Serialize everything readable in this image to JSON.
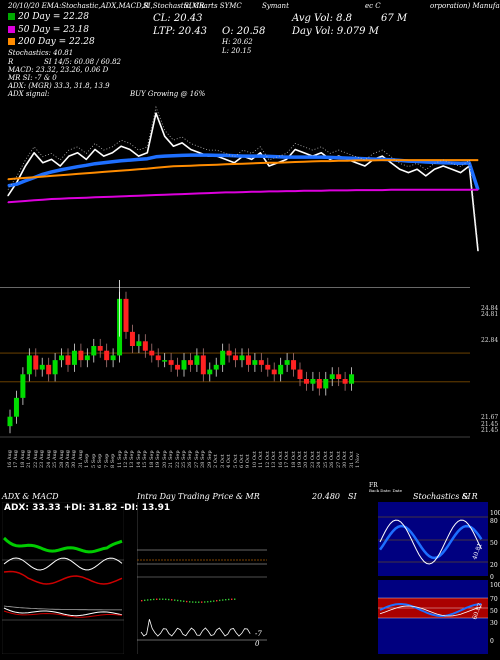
{
  "header": {
    "top_line_left": "20/10/20 EMA:Stochastic,ADX,MACD,R",
    "top_line_mid": "SI,Stochastic,MR",
    "top_line_mid2": "SI Charts SYMC",
    "top_line_right1": "Symant",
    "top_line_right2": "ec C",
    "top_line_right3": "orporation) Manufac",
    "ema20": "20  Day = 22.28",
    "ema50": "50  Day = 23.18",
    "ema200": "200  Day = 22.28",
    "stochastics": "Stochastics: 40.81",
    "r_label": "R",
    "si": "SI 14/5: 60.08 / 60.82",
    "macd": "MACD: 23.32, 23.26, 0.06  D",
    "mr": "MR          SI: -7 & 0",
    "adx": "ADX:                    (MGR) 33.3, 31.8, 13.9",
    "adx_signal_label": "ADX  signal:",
    "adx_signal": "BUY Growing @ 16%",
    "cl": "CL: 20.43",
    "ltp": "LTP: 20.43",
    "open": "O: 20.58",
    "high": "H: 20.62",
    "low": "L: 20.15",
    "avg_vol": "Avg Vol: 8.8",
    "avg_vol_unit": "67 M",
    "day_vol": "Day Vol: 9.079 M",
    "swatch_colors": [
      "#00aa00",
      "#dd00dd",
      "#ff8c00"
    ]
  },
  "chart_data": [
    {
      "type": "line",
      "name": "price-and-emas",
      "x": [
        "16 Aug",
        "17 Aug",
        "18 Aug",
        "21 Aug",
        "22 Aug",
        "23 Aug",
        "24 Aug",
        "25 Aug",
        "28 Aug",
        "29 Aug",
        "30 Aug",
        "31 Aug",
        "1 Sep",
        "5 Sep",
        "6 Sep",
        "7 Sep",
        "8 Sep",
        "11 Sep",
        "12 Sep",
        "13 Sep",
        "14 Sep",
        "15 Sep",
        "18 Sep",
        "19 Sep",
        "20 Sep",
        "21 Sep",
        "22 Sep",
        "25 Sep",
        "26 Sep",
        "27 Sep",
        "28 Sep",
        "29 Sep",
        "2 Oct",
        "3 Oct",
        "4 Oct",
        "5 Oct",
        "6 Oct",
        "9 Oct",
        "10 Oct",
        "11 Oct",
        "12 Oct",
        "13 Oct",
        "16 Oct",
        "17 Oct",
        "18 Oct",
        "19 Oct",
        "20 Oct",
        "23 Oct",
        "24 Oct",
        "25 Oct",
        "26 Oct",
        "27 Oct",
        "30 Oct",
        "31 Oct",
        "1 Nov"
      ],
      "series": [
        {
          "name": "close",
          "color": "#ffffff",
          "values": [
            22.1,
            22.5,
            23.0,
            23.4,
            23.1,
            23.2,
            23.0,
            23.3,
            23.4,
            23.2,
            23.5,
            23.3,
            23.4,
            23.6,
            23.5,
            23.3,
            23.4,
            24.6,
            23.9,
            23.6,
            23.7,
            23.5,
            23.4,
            23.3,
            23.3,
            23.2,
            23.1,
            23.3,
            23.2,
            23.4,
            23.0,
            23.1,
            23.2,
            23.5,
            23.4,
            23.3,
            23.4,
            23.2,
            23.3,
            23.2,
            23.1,
            23.0,
            23.2,
            23.3,
            23.1,
            22.9,
            22.8,
            22.9,
            22.7,
            22.9,
            23.0,
            22.9,
            22.8,
            23.0,
            20.43
          ]
        },
        {
          "name": "ema20",
          "color": "#1e6fff",
          "values": [
            22.4,
            22.45,
            22.55,
            22.65,
            22.75,
            22.82,
            22.88,
            22.93,
            22.98,
            23.02,
            23.07,
            23.1,
            23.13,
            23.16,
            23.18,
            23.2,
            23.22,
            23.28,
            23.3,
            23.31,
            23.32,
            23.33,
            23.33,
            23.33,
            23.32,
            23.32,
            23.31,
            23.3,
            23.3,
            23.3,
            23.29,
            23.28,
            23.27,
            23.27,
            23.27,
            23.27,
            23.27,
            23.26,
            23.25,
            23.24,
            23.23,
            23.22,
            23.21,
            23.2,
            23.19,
            23.17,
            23.15,
            23.14,
            23.12,
            23.11,
            23.1,
            23.09,
            23.08,
            23.09,
            22.28
          ]
        },
        {
          "name": "ema50",
          "color": "#ff8c00",
          "values": [
            22.6,
            22.62,
            22.64,
            22.66,
            22.68,
            22.7,
            22.72,
            22.74,
            22.76,
            22.78,
            22.8,
            22.82,
            22.84,
            22.86,
            22.88,
            22.9,
            22.92,
            22.95,
            22.97,
            22.99,
            23.0,
            23.01,
            23.02,
            23.03,
            23.04,
            23.05,
            23.06,
            23.07,
            23.08,
            23.09,
            23.1,
            23.1,
            23.11,
            23.12,
            23.13,
            23.14,
            23.15,
            23.15,
            23.16,
            23.16,
            23.17,
            23.17,
            23.17,
            23.18,
            23.18,
            23.18,
            23.18,
            23.18,
            23.18,
            23.18,
            23.18,
            23.18,
            23.18,
            23.18,
            23.18
          ]
        },
        {
          "name": "ema200",
          "color": "#dd00dd",
          "values": [
            21.9,
            21.92,
            21.94,
            21.96,
            21.98,
            22.0,
            22.01,
            22.02,
            22.03,
            22.04,
            22.05,
            22.06,
            22.07,
            22.08,
            22.09,
            22.1,
            22.11,
            22.12,
            22.13,
            22.14,
            22.15,
            22.16,
            22.17,
            22.18,
            22.19,
            22.2,
            22.2,
            22.21,
            22.22,
            22.22,
            22.23,
            22.23,
            22.24,
            22.24,
            22.25,
            22.25,
            22.25,
            22.26,
            22.26,
            22.26,
            22.27,
            22.27,
            22.27,
            22.27,
            22.28,
            22.28,
            22.28,
            22.28,
            22.28,
            22.28,
            22.28,
            22.28,
            22.28,
            22.28,
            22.28
          ]
        }
      ]
    },
    {
      "type": "candlestick",
      "name": "daily-candles",
      "ylim": [
        21.5,
        25.0
      ],
      "price_labels": [
        "24.84",
        "24.81",
        "22.84",
        "21.67",
        "21.45",
        "21.45"
      ],
      "x_labels": [
        "16 Aug",
        "17 Aug",
        "18 Aug",
        "21 Aug",
        "22 Aug",
        "23 Aug",
        "24 Aug",
        "25 Aug",
        "28 Aug",
        "29 Aug",
        "30 Aug",
        "31 Aug",
        "1 Sep",
        "5 Sep",
        "6 Sep",
        "7 Sep",
        "8 Sep",
        "11 Sep",
        "12 Sep",
        "13 Sep",
        "14 Sep",
        "15 Sep",
        "18 Sep",
        "19 Sep",
        "20 Sep",
        "21 Sep",
        "22 Sep",
        "25 Sep",
        "26 Sep",
        "27 Sep",
        "28 Sep",
        "29 Sep",
        "2 Oct",
        "3 Oct",
        "4 Oct",
        "5 Oct",
        "6 Oct",
        "9 Oct",
        "10 Oct",
        "11 Oct",
        "12 Oct",
        "13 Oct",
        "16 Oct",
        "17 Oct",
        "18 Oct",
        "19 Oct",
        "20 Oct",
        "23 Oct",
        "24 Oct",
        "25 Oct",
        "26 Oct",
        "27 Oct",
        "30 Oct",
        "31 Oct",
        "1 Nov"
      ],
      "up_color": "#00dd00",
      "down_color": "#ff2222"
    },
    {
      "type": "line",
      "name": "adx-macd",
      "title": "ADX  & MACD",
      "readout": "ADX: 33.33 +DI: 31.82 -DI: 13.91"
    },
    {
      "type": "line",
      "name": "intraday",
      "title": "Intra  Day Trading Price  & MR",
      "price": "20.480",
      "price_suffix": "SI",
      "mr_labels": [
        "-7",
        "0"
      ]
    },
    {
      "type": "line",
      "name": "stochastics-rsi",
      "title": "Stochastics & R",
      "title_suffix": "SI",
      "axis_top": [
        "100",
        "80",
        "50",
        "20",
        "0"
      ],
      "axis_bottom": [
        "100",
        "70",
        "50",
        "30",
        "0"
      ],
      "stoch_value": "40.81",
      "rsi_value": "60.82"
    }
  ],
  "footer": {
    "small_label": "FR",
    "small_label2": "Back Date: Date"
  }
}
